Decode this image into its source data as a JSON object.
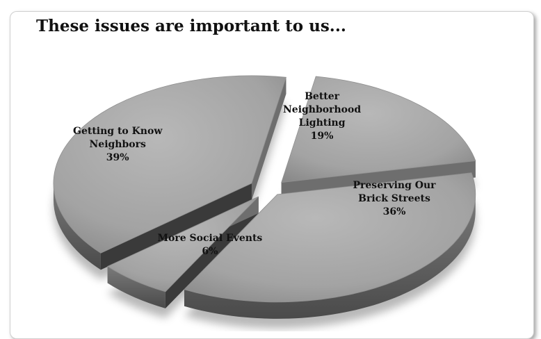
{
  "chart_data": {
    "type": "pie",
    "title": "These issues are important to us...",
    "slices": [
      {
        "label": "Better Neighborhood Lighting",
        "value": 19,
        "value_label": "19%",
        "lines": [
          "Better",
          "Neighborhood",
          "Lighting"
        ]
      },
      {
        "label": "Preserving Our Brick Streets",
        "value": 36,
        "value_label": "36%",
        "lines": [
          "Preserving Our",
          "Brick Streets"
        ]
      },
      {
        "label": "More Social Events",
        "value": 6,
        "value_label": "6%",
        "lines": [
          "More Social Events"
        ]
      },
      {
        "label": "Getting to Know Neighbors",
        "value": 39,
        "value_label": "39%",
        "lines": [
          "Getting to Know",
          "Neighbors"
        ]
      }
    ],
    "unit": "%",
    "style": "3d-exploded",
    "colors": {
      "top": "#a9a9a9",
      "side": "#6e6e6e",
      "dark": "#3a3a3a"
    }
  }
}
